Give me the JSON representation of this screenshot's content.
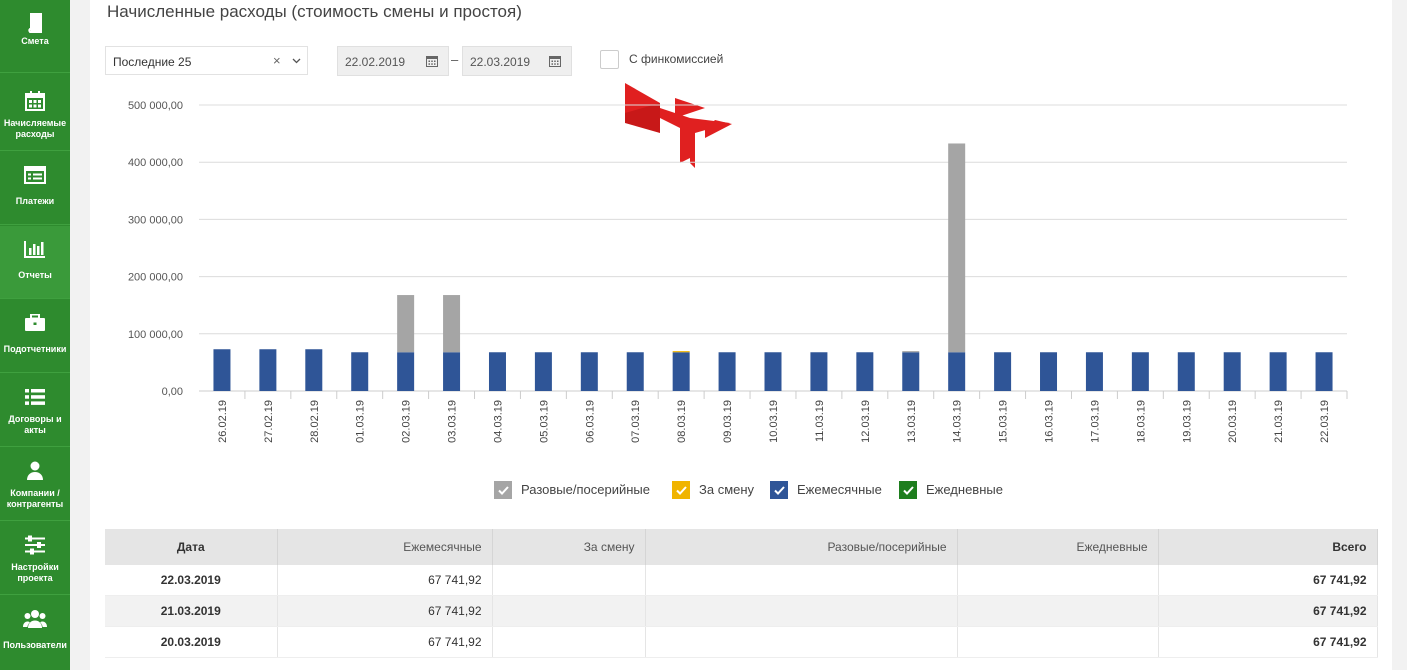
{
  "sidebar": {
    "items": [
      {
        "label": "Смета",
        "icon": "book-icon"
      },
      {
        "label": "Начисляемые расходы",
        "icon": "calendar-icon"
      },
      {
        "label": "Платежи",
        "icon": "list-card-icon"
      },
      {
        "label": "Отчеты",
        "icon": "bar-chart-icon"
      },
      {
        "label": "Подотчетники",
        "icon": "briefcase-icon"
      },
      {
        "label": "Договоры и акты",
        "icon": "list-icon"
      },
      {
        "label": "Компании / контрагенты",
        "icon": "user-icon"
      },
      {
        "label": "Настройки проекта",
        "icon": "sliders-icon"
      },
      {
        "label": "Пользователи",
        "icon": "users-icon"
      }
    ]
  },
  "page": {
    "title": "Начисленные расходы (стоимость смены и простоя)"
  },
  "filters": {
    "period": "Последние 25",
    "date_from": "22.02.2019",
    "date_to": "22.03.2019",
    "separator": "–",
    "commission_label": "С финкомиссией"
  },
  "colors": {
    "gray": "#a5a5a5",
    "yellow": "#f0b400",
    "blue": "#2f5597",
    "green": "#1e7e1e",
    "sidebar": "#2e8b2e"
  },
  "chart_data": {
    "type": "bar",
    "stacked": true,
    "categories": [
      "26.02.19",
      "27.02.19",
      "28.02.19",
      "01.03.19",
      "02.03.19",
      "03.03.19",
      "04.03.19",
      "05.03.19",
      "06.03.19",
      "07.03.19",
      "08.03.19",
      "09.03.19",
      "10.03.19",
      "11.03.19",
      "12.03.19",
      "13.03.19",
      "14.03.19",
      "15.03.19",
      "16.03.19",
      "17.03.19",
      "18.03.19",
      "19.03.19",
      "20.03.19",
      "21.03.19",
      "22.03.19"
    ],
    "series": [
      {
        "name": "Ежемесячные",
        "color": "#2f5597",
        "values": [
          73000,
          73000,
          73000,
          67741.92,
          67741.92,
          67741.92,
          67741.92,
          67741.92,
          67741.92,
          67741.92,
          67741.92,
          67741.92,
          67741.92,
          67741.92,
          67741.92,
          67741.92,
          67741.92,
          67741.92,
          67741.92,
          67741.92,
          67741.92,
          67741.92,
          67741.92,
          67741.92,
          67741.92
        ]
      },
      {
        "name": "За смену",
        "color": "#f0b400",
        "values": [
          0,
          0,
          0,
          0,
          0,
          0,
          0,
          0,
          0,
          0,
          2000,
          0,
          0,
          0,
          0,
          0,
          0,
          0,
          0,
          0,
          0,
          0,
          0,
          0,
          0
        ]
      },
      {
        "name": "Разовые/посерийные",
        "color": "#a5a5a5",
        "values": [
          0,
          0,
          0,
          0,
          100000,
          100000,
          0,
          0,
          0,
          0,
          0,
          0,
          0,
          0,
          0,
          2000,
          365000,
          0,
          0,
          0,
          0,
          0,
          0,
          0,
          0
        ]
      },
      {
        "name": "Ежедневные",
        "color": "#1e7e1e",
        "values": [
          0,
          0,
          0,
          0,
          0,
          0,
          0,
          0,
          0,
          0,
          0,
          0,
          0,
          0,
          0,
          0,
          0,
          0,
          0,
          0,
          0,
          0,
          0,
          0,
          0
        ]
      }
    ],
    "ylim": [
      0,
      500000
    ],
    "yticks": [
      "0,00",
      "100 000,00",
      "200 000,00",
      "300 000,00",
      "400 000,00",
      "500 000,00"
    ],
    "grid": true,
    "legend_position": "bottom"
  },
  "legend": [
    "Разовые/посерийные",
    "За смену",
    "Ежемесячные",
    "Ежедневные"
  ],
  "table": {
    "headers": [
      "Дата",
      "Ежемесячные",
      "За смену",
      "Разовые/посерийные",
      "Ежедневные",
      "Всего"
    ],
    "rows": [
      [
        "22.03.2019",
        "67 741,92",
        "",
        "",
        "",
        "67 741,92"
      ],
      [
        "21.03.2019",
        "67 741,92",
        "",
        "",
        "",
        "67 741,92"
      ],
      [
        "20.03.2019",
        "67 741,92",
        "",
        "",
        "",
        "67 741,92"
      ]
    ]
  }
}
